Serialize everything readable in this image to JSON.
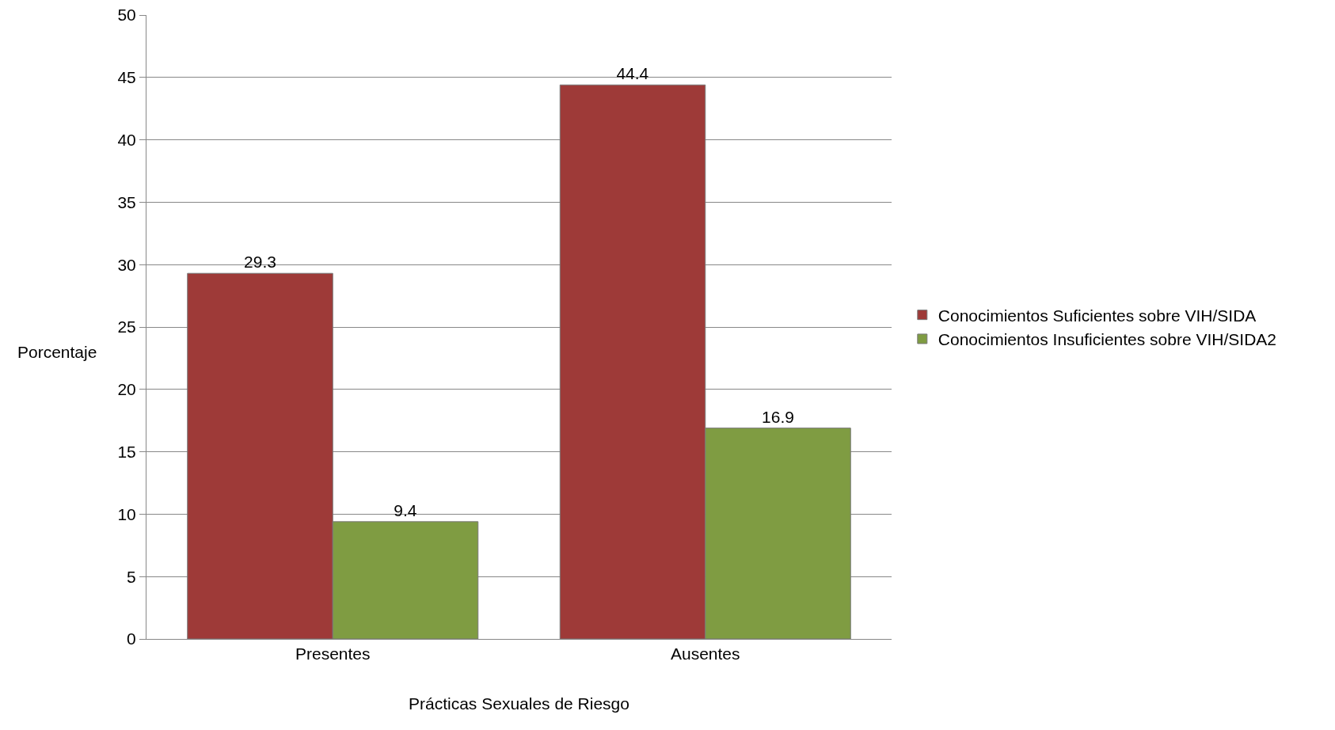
{
  "chart_data": {
    "type": "bar",
    "xlabel": "Prácticas Sexuales de Riesgo",
    "ylabel": "Porcentaje",
    "categories": [
      "Presentes",
      "Ausentes"
    ],
    "series": [
      {
        "name": "Conocimientos Suficientes sobre VIH/SIDA",
        "color": "#9e3a38",
        "values": [
          29.3,
          44.4
        ]
      },
      {
        "name": "Conocimientos Insuficientes sobre VIH/SIDA2",
        "color": "#7f9c42",
        "values": [
          9.4,
          16.9
        ]
      }
    ],
    "ylim": [
      0,
      50
    ],
    "yticks": [
      0,
      5,
      10,
      15,
      20,
      25,
      30,
      35,
      40,
      45,
      50
    ],
    "grid": "y",
    "legend": "right",
    "data_labels": true
  }
}
